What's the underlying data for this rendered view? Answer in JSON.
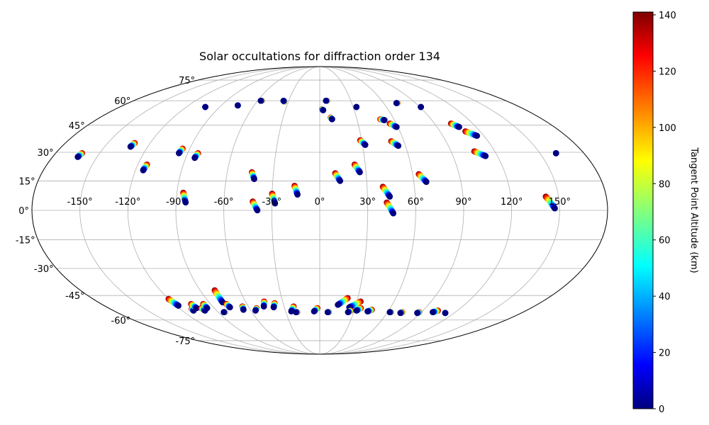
{
  "chart_data": {
    "type": "scatter",
    "projection": "mollweide",
    "title": "Solar occultations for diffraction order 134",
    "colorbar": {
      "label": "Tangent Point Altitude (km)",
      "range": [
        0,
        141
      ],
      "ticks": [
        0,
        20,
        40,
        60,
        80,
        100,
        120,
        140
      ],
      "tick_labels": [
        "0",
        "20",
        "40",
        "60",
        "80",
        "100",
        "120",
        "140"
      ],
      "colormap": "jet"
    },
    "lon_grid": [
      -150,
      -120,
      -90,
      -60,
      -30,
      0,
      30,
      60,
      90,
      120,
      150
    ],
    "lon_tick_labels": [
      "-150°",
      "-120°",
      "-90°",
      "-60°",
      "-30°",
      "0°",
      "30°",
      "60°",
      "90°",
      "120°",
      "150°"
    ],
    "lat_grid": [
      -75,
      -60,
      -45,
      -30,
      -15,
      0,
      15,
      30,
      45,
      60,
      75
    ],
    "lat_tick_labels": [
      "-75°",
      "-60°",
      "-45°",
      "-30°",
      "-15°",
      "0°",
      "15°",
      "30°",
      "45°",
      "60°",
      "75°"
    ],
    "tracks": [
      {
        "lon": [
          -162,
          -163
        ],
        "lat": [
          29.5,
          27.5
        ]
      },
      {
        "lon": [
          -131,
          -132
        ],
        "lat": [
          35,
          33
        ]
      },
      {
        "lon": [
          -114,
          -115
        ],
        "lat": [
          23.5,
          20.5
        ]
      },
      {
        "lon": [
          -103
        ],
        "lat": [
          56
        ]
      },
      {
        "lon": [
          -95,
          -96
        ],
        "lat": [
          32,
          29.5
        ]
      },
      {
        "lon": [
          -83,
          -84
        ],
        "lat": [
          29.5,
          27
        ]
      },
      {
        "lon": [
          -86,
          -84
        ],
        "lat": [
          9,
          4
        ]
      },
      {
        "lon": [
          -75
        ],
        "lat": [
          57
        ]
      },
      {
        "lon": [
          -56,
          -57
        ],
        "lat": [
          60,
          60
        ]
      },
      {
        "lon": [
          -44,
          -42
        ],
        "lat": [
          19.5,
          16
        ]
      },
      {
        "lon": [
          -42,
          -39
        ],
        "lat": [
          4.5,
          0
        ]
      },
      {
        "lon": [
          -34,
          -35
        ],
        "lat": [
          59.5,
          60
        ]
      },
      {
        "lon": [
          -30,
          -28
        ],
        "lat": [
          8.5,
          3.5
        ]
      },
      {
        "lon": [
          -16,
          -14
        ],
        "lat": [
          12.5,
          8
        ]
      },
      {
        "lon": [
          2,
          3
        ],
        "lat": [
          54.5,
          54
        ]
      },
      {
        "lon": [
          7,
          6
        ],
        "lat": [
          60,
          60
        ]
      },
      {
        "lon": [
          9,
          10
        ],
        "lat": [
          49.5,
          48.5
        ]
      },
      {
        "lon": [
          10,
          13
        ],
        "lat": [
          19,
          15
        ]
      },
      {
        "lon": [
          23,
          26
        ],
        "lat": [
          23.5,
          19.5
        ]
      },
      {
        "lon": [
          29,
          32
        ],
        "lat": [
          36.5,
          34
        ]
      },
      {
        "lon": [
          33
        ],
        "lat": [
          56
        ]
      },
      {
        "lon": [
          40,
          44
        ],
        "lat": [
          12,
          7
        ]
      },
      {
        "lon": [
          42,
          46
        ],
        "lat": [
          4,
          -1.5
        ]
      },
      {
        "lon": [
          49,
          52
        ],
        "lat": [
          48.5,
          48
        ]
      },
      {
        "lon": [
          51,
          55
        ],
        "lat": [
          36,
          33.5
        ]
      },
      {
        "lon": [
          55,
          59
        ],
        "lat": [
          46,
          44
        ]
      },
      {
        "lon": [
          64,
          68
        ],
        "lat": [
          18.5,
          14.5
        ]
      },
      {
        "lon": [
          73,
          72
        ],
        "lat": [
          58.5,
          58.5
        ]
      },
      {
        "lon": [
          91
        ],
        "lat": [
          56
        ]
      },
      {
        "lon": [
          103,
          107
        ],
        "lat": [
          46,
          44
        ]
      },
      {
        "lon": [
          106,
          112
        ],
        "lat": [
          30.5,
          28
        ]
      },
      {
        "lon": [
          109,
          115
        ],
        "lat": [
          41.5,
          39
        ]
      },
      {
        "lon": [
          142,
          147
        ],
        "lat": [
          7,
          1
        ]
      },
      {
        "lon": [
          161
        ],
        "lat": [
          29.5
        ]
      },
      {
        "lon": [
          -120,
          -118
        ],
        "lat": [
          -47,
          -51
        ]
      },
      {
        "lon": [
          -110,
          -110
        ],
        "lat": [
          -53,
          -54
        ]
      },
      {
        "lon": [
          -106,
          -105
        ],
        "lat": [
          -50,
          -52.5
        ]
      },
      {
        "lon": [
          -101,
          -100
        ],
        "lat": [
          -52.5,
          -54
        ]
      },
      {
        "lon": [
          -96,
          -96
        ],
        "lat": [
          -50,
          -52.5
        ]
      },
      {
        "lon": [
          -84,
          -85
        ],
        "lat": [
          -55,
          -55
        ]
      },
      {
        "lon": [
          -79,
          -79
        ],
        "lat": [
          -42,
          -49
        ]
      },
      {
        "lon": [
          -77,
          -76
        ],
        "lat": [
          -50,
          -52
        ]
      },
      {
        "lon": [
          -65,
          -66
        ],
        "lat": [
          -51.5,
          -53.5
        ]
      },
      {
        "lon": [
          -54,
          -56
        ],
        "lat": [
          -52.5,
          -54
        ]
      },
      {
        "lon": [
          -45,
          -47
        ],
        "lat": [
          -48.5,
          -51.5
        ]
      },
      {
        "lon": [
          -37,
          -39
        ],
        "lat": [
          -49.5,
          -52
        ]
      },
      {
        "lon": [
          -22,
          -25
        ],
        "lat": [
          -51.5,
          -54.5
        ]
      },
      {
        "lon": [
          -20,
          -21
        ],
        "lat": [
          -55,
          -55
        ]
      },
      {
        "lon": [
          -2,
          -5
        ],
        "lat": [
          -52.5,
          -54.5
        ]
      },
      {
        "lon": [
          8,
          7
        ],
        "lat": [
          -55,
          -55
        ]
      },
      {
        "lon": [
          22,
          15
        ],
        "lat": [
          -46.5,
          -50.5
        ]
      },
      {
        "lon": [
          33,
          25
        ],
        "lat": [
          -48.5,
          -52
        ]
      },
      {
        "lon": [
          35,
          32
        ],
        "lat": [
          -52.5,
          -54
        ]
      },
      {
        "lon": [
          27,
          25
        ],
        "lat": [
          -54,
          -55
        ]
      },
      {
        "lon": [
          45,
          42
        ],
        "lat": [
          -53.5,
          -54.5
        ]
      },
      {
        "lon": [
          63,
          62
        ],
        "lat": [
          -55,
          -55
        ]
      },
      {
        "lon": [
          73,
          72
        ],
        "lat": [
          -55,
          -55.5
        ]
      },
      {
        "lon": [
          88,
          87
        ],
        "lat": [
          -55,
          -55.5
        ]
      },
      {
        "lon": [
          103,
          100
        ],
        "lat": [
          -54,
          -55
        ]
      },
      {
        "lon": [
          112
        ],
        "lat": [
          -55.5
        ]
      }
    ]
  }
}
